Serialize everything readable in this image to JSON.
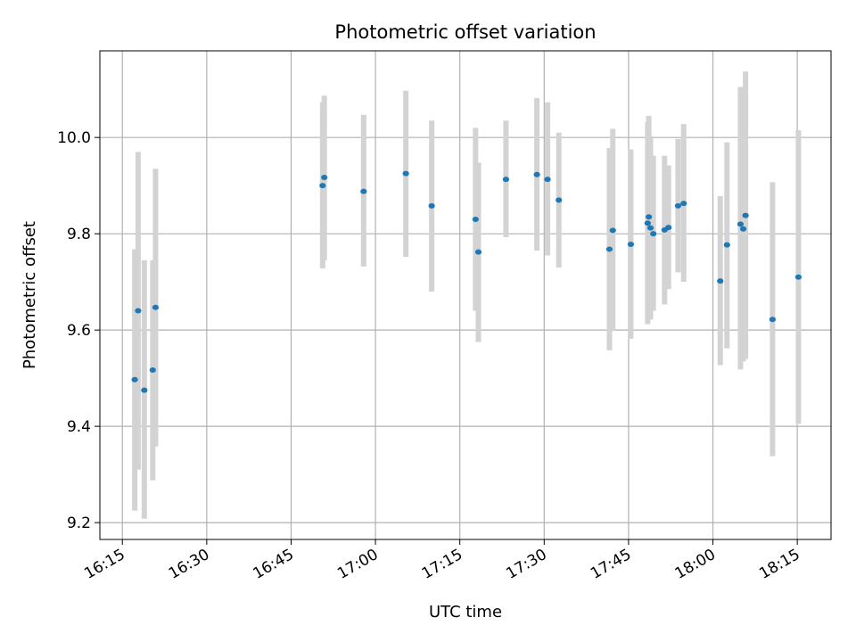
{
  "chart_data": {
    "type": "scatter",
    "title": "Photometric offset variation",
    "xlabel": "UTC time",
    "ylabel": "Photometric offset",
    "xlim": [
      "16:11",
      "18:21"
    ],
    "ylim": [
      9.165,
      10.18
    ],
    "xticks": [
      "16:15",
      "16:30",
      "16:45",
      "17:00",
      "17:15",
      "17:30",
      "17:45",
      "18:00",
      "18:15"
    ],
    "yticks": [
      "9.2",
      "9.4",
      "9.6",
      "9.8",
      "10.0"
    ],
    "grid": true,
    "colors": {
      "point": "#1f77b4",
      "errorbar": "#d3d3d3",
      "grid": "#b0b0b0"
    },
    "points": [
      {
        "x": "16:17:12",
        "y": 9.497,
        "lo": 9.225,
        "hi": 9.768
      },
      {
        "x": "16:17:48",
        "y": 9.64,
        "lo": 9.31,
        "hi": 9.97
      },
      {
        "x": "16:18:54",
        "y": 9.475,
        "lo": 9.208,
        "hi": 9.745
      },
      {
        "x": "16:20:24",
        "y": 9.517,
        "lo": 9.288,
        "hi": 9.745
      },
      {
        "x": "16:20:54",
        "y": 9.647,
        "lo": 9.358,
        "hi": 9.935
      },
      {
        "x": "16:50:36",
        "y": 9.9,
        "lo": 9.728,
        "hi": 10.073
      },
      {
        "x": "16:50:54",
        "y": 9.917,
        "lo": 9.745,
        "hi": 10.087
      },
      {
        "x": "16:57:54",
        "y": 9.888,
        "lo": 9.732,
        "hi": 10.047
      },
      {
        "x": "17:05:24",
        "y": 9.925,
        "lo": 9.752,
        "hi": 10.097
      },
      {
        "x": "17:10:00",
        "y": 9.858,
        "lo": 9.68,
        "hi": 10.035
      },
      {
        "x": "17:17:48",
        "y": 9.83,
        "lo": 9.64,
        "hi": 10.02
      },
      {
        "x": "17:18:18",
        "y": 9.762,
        "lo": 9.575,
        "hi": 9.948
      },
      {
        "x": "17:23:12",
        "y": 9.913,
        "lo": 9.793,
        "hi": 10.035
      },
      {
        "x": "17:28:42",
        "y": 9.923,
        "lo": 9.765,
        "hi": 10.082
      },
      {
        "x": "17:30:36",
        "y": 9.913,
        "lo": 9.755,
        "hi": 10.073
      },
      {
        "x": "17:32:36",
        "y": 9.87,
        "lo": 9.73,
        "hi": 10.01
      },
      {
        "x": "17:41:36",
        "y": 9.768,
        "lo": 9.558,
        "hi": 9.978
      },
      {
        "x": "17:42:12",
        "y": 9.807,
        "lo": 9.598,
        "hi": 10.018
      },
      {
        "x": "17:45:24",
        "y": 9.778,
        "lo": 9.582,
        "hi": 9.975
      },
      {
        "x": "17:48:24",
        "y": 9.822,
        "lo": 9.612,
        "hi": 10.032
      },
      {
        "x": "17:48:36",
        "y": 9.835,
        "lo": 9.625,
        "hi": 10.045
      },
      {
        "x": "17:48:54",
        "y": 9.812,
        "lo": 9.622,
        "hi": 10.003
      },
      {
        "x": "17:49:24",
        "y": 9.8,
        "lo": 9.64,
        "hi": 9.962
      },
      {
        "x": "17:51:24",
        "y": 9.808,
        "lo": 9.653,
        "hi": 9.962
      },
      {
        "x": "17:52:06",
        "y": 9.813,
        "lo": 9.685,
        "hi": 9.942
      },
      {
        "x": "17:53:48",
        "y": 9.858,
        "lo": 9.72,
        "hi": 9.997
      },
      {
        "x": "17:54:48",
        "y": 9.863,
        "lo": 9.7,
        "hi": 10.028
      },
      {
        "x": "18:01:18",
        "y": 9.702,
        "lo": 9.527,
        "hi": 9.878
      },
      {
        "x": "18:02:30",
        "y": 9.777,
        "lo": 9.562,
        "hi": 9.99
      },
      {
        "x": "18:04:54",
        "y": 9.82,
        "lo": 9.518,
        "hi": 10.105
      },
      {
        "x": "18:05:24",
        "y": 9.81,
        "lo": 9.535,
        "hi": 10.085
      },
      {
        "x": "18:05:48",
        "y": 9.838,
        "lo": 9.54,
        "hi": 10.137
      },
      {
        "x": "18:10:36",
        "y": 9.622,
        "lo": 9.338,
        "hi": 9.907
      },
      {
        "x": "18:15:12",
        "y": 9.71,
        "lo": 9.405,
        "hi": 10.015
      }
    ]
  }
}
